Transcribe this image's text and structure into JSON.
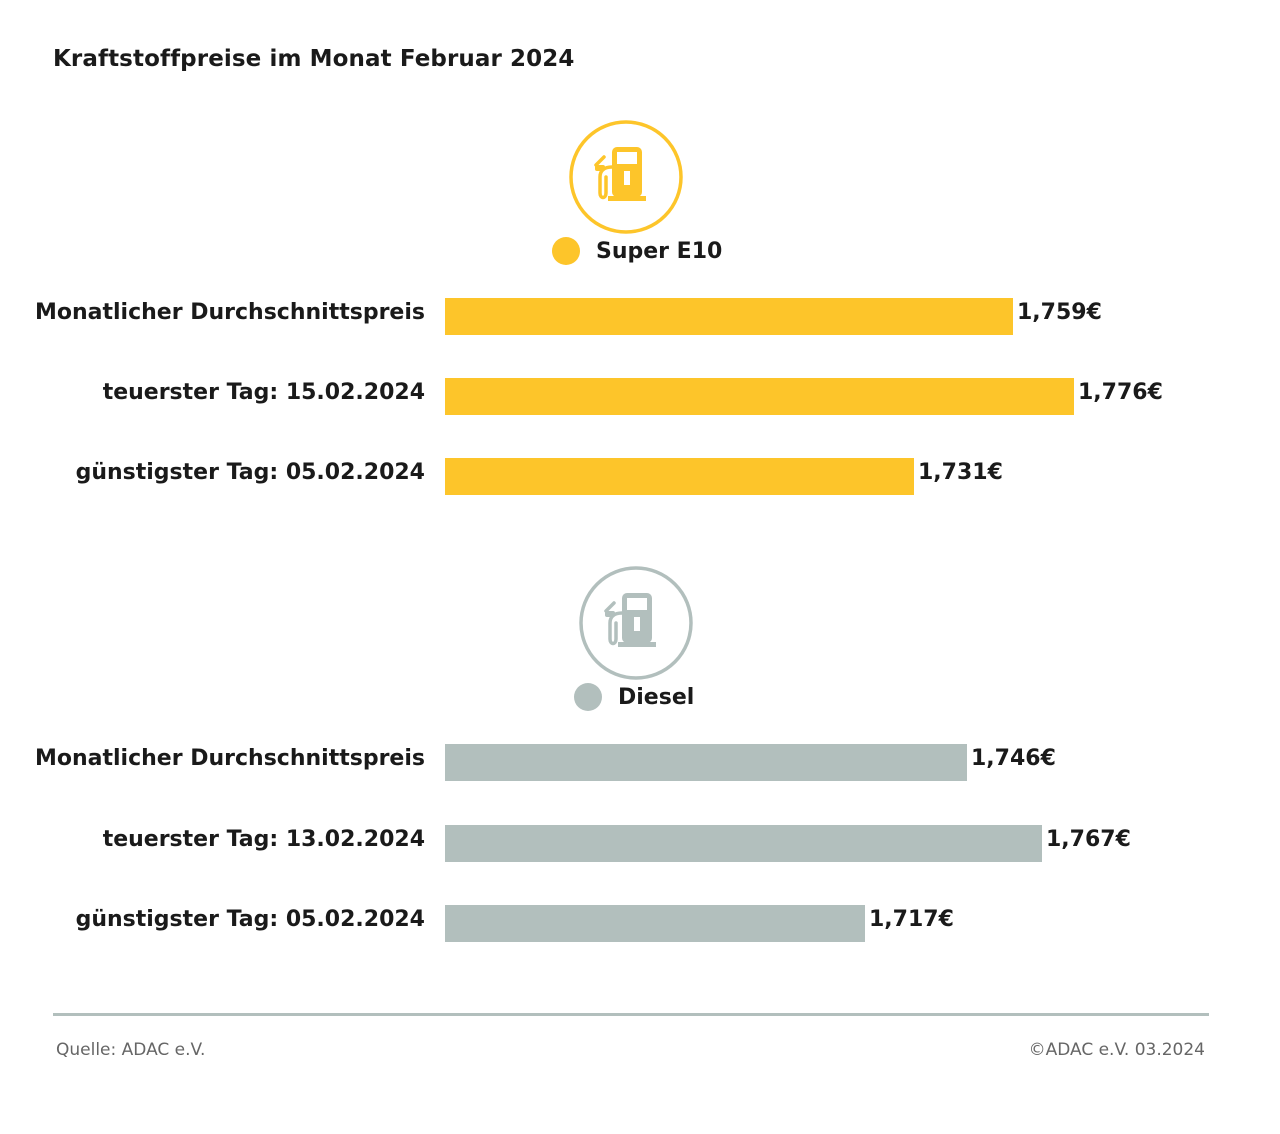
{
  "colors": {
    "super_e10": "#fdc52a",
    "diesel": "#b2bfbd"
  },
  "chart_data": {
    "type": "bar",
    "orientation": "horizontal",
    "title": "Kraftstoffpreise im Monat Februar 2024",
    "unit": "€",
    "groups": [
      {
        "name": "Super E10",
        "icon": "fuel-pump-icon",
        "color": "#fdc52a",
        "categories": [
          "Monatlicher Durchschnittspreis",
          "teuerster Tag: 15.02.2024",
          "günstigster Tag: 05.02.2024"
        ],
        "values": [
          1.759,
          1.776,
          1.731
        ],
        "value_labels": [
          "1,759€",
          "1,776€",
          "1,731€"
        ]
      },
      {
        "name": "Diesel",
        "icon": "fuel-pump-icon",
        "color": "#b2bfbd",
        "categories": [
          "Monatlicher Durchschnittspreis",
          "teuerster Tag: 13.02.2024",
          "günstigster Tag: 05.02.2024"
        ],
        "values": [
          1.746,
          1.767,
          1.717
        ],
        "value_labels": [
          "1,746€",
          "1,767€",
          "1,717€"
        ]
      }
    ],
    "grid": false,
    "legend": "above each group"
  },
  "footer": {
    "source": "Quelle: ADAC e.V.",
    "copyright": "©ADAC e.V. 03.2024"
  }
}
